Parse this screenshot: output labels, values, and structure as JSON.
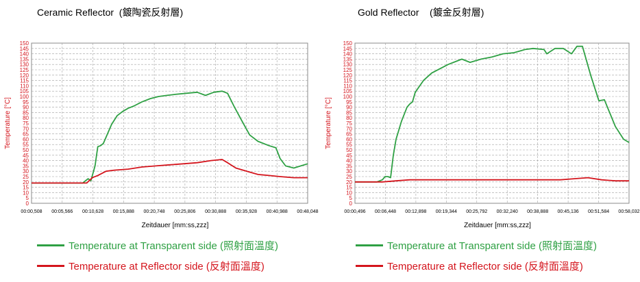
{
  "chart_data": [
    {
      "type": "line",
      "title": "Ceramic Reflector  (鍍陶瓷反射層)",
      "xlabel": "Zeitdauer [mm:ss,zzz]",
      "ylabel": "Temperature [°C]",
      "ylim": [
        0,
        150
      ],
      "yticks": [
        "0",
        "5",
        "10",
        "15",
        "20",
        "25",
        "30",
        "35",
        "40",
        "45",
        "50",
        "55",
        "60",
        "65",
        "70",
        "75",
        "80",
        "85",
        "90",
        "95",
        "100",
        "105",
        "110",
        "115",
        "120",
        "125",
        "130",
        "135",
        "140",
        "145",
        "150"
      ],
      "xlim": [
        0,
        10
      ],
      "xtick_labels": [
        "00:00,508",
        "00:05,566",
        "00:10,628",
        "00:15,888",
        "00:20,748",
        "00:25,806",
        "00:30,888",
        "00:35,928",
        "00:40,988",
        "00:48,048"
      ],
      "grid": true,
      "series": [
        {
          "name": "Temperature at Transparent side  (照射面溫度)",
          "color": "#2ea043",
          "x": [
            0,
            0.5,
            1,
            1.5,
            1.85,
            2.05,
            2.15,
            2.3,
            2.4,
            2.5,
            2.6,
            2.9,
            3.1,
            3.3,
            3.5,
            3.7,
            4.0,
            4.3,
            4.6,
            4.9,
            5.2,
            5.6,
            6.0,
            6.3,
            6.6,
            6.9,
            7.1,
            7.35,
            7.6,
            7.9,
            8.2,
            8.6,
            8.85,
            9.0,
            9.2,
            9.5,
            9.75,
            10.0
          ],
          "y": [
            19,
            19,
            19,
            19,
            19,
            23,
            21,
            35,
            53,
            54,
            56,
            74,
            82,
            86,
            89,
            91,
            95,
            98,
            100,
            101,
            102,
            103,
            104,
            101,
            104,
            105,
            103,
            90,
            78,
            64,
            58,
            54,
            52,
            42,
            35,
            33,
            35,
            37
          ]
        },
        {
          "name": "Temperature at Reflector side  (反射面溫度)",
          "color": "#d4141c",
          "x": [
            0,
            1,
            2.0,
            2.2,
            2.4,
            2.7,
            3.0,
            3.5,
            4.0,
            4.5,
            5.0,
            5.5,
            6.0,
            6.5,
            6.9,
            7.1,
            7.4,
            7.8,
            8.2,
            8.6,
            9.0,
            9.5,
            10.0
          ],
          "y": [
            19,
            19,
            19,
            24,
            26,
            30,
            31,
            32,
            34,
            35,
            36,
            37,
            38,
            40,
            41,
            38,
            33,
            30,
            27,
            26,
            25,
            24,
            24
          ]
        }
      ]
    },
    {
      "type": "line",
      "title": "Gold Reflector    (鍍金反射層)",
      "xlabel": "Zeitdauer [mm:ss,zzz]",
      "ylabel": "Temperature [°C]",
      "ylim": [
        0,
        150
      ],
      "yticks": [
        "0",
        "5",
        "10",
        "15",
        "20",
        "25",
        "30",
        "35",
        "40",
        "45",
        "50",
        "55",
        "60",
        "65",
        "70",
        "75",
        "80",
        "85",
        "90",
        "95",
        "100",
        "105",
        "110",
        "115",
        "120",
        "125",
        "130",
        "135",
        "140",
        "145",
        "150"
      ],
      "xlim": [
        0,
        10
      ],
      "xtick_labels": [
        "00:00,496",
        "00:06,448",
        "00:12,898",
        "00:19,344",
        "00:25,792",
        "00:32,240",
        "00:38,888",
        "00:45,136",
        "00:51,584",
        "00:58,032"
      ],
      "grid": true,
      "series": [
        {
          "name": "Temperature at Transparent side  (照射面溫度)",
          "color": "#2ea043",
          "x": [
            0,
            0.5,
            0.8,
            1.0,
            1.1,
            1.2,
            1.3,
            1.4,
            1.5,
            1.7,
            1.9,
            2.0,
            2.1,
            2.2,
            2.5,
            2.8,
            3.1,
            3.4,
            3.7,
            3.9,
            4.2,
            4.6,
            5.0,
            5.4,
            5.8,
            6.2,
            6.5,
            6.9,
            7.0,
            7.3,
            7.6,
            7.9,
            8.1,
            8.3,
            8.6,
            8.9,
            9.1,
            9.5,
            9.8,
            10.0
          ],
          "y": [
            20,
            20,
            20,
            22,
            25,
            25,
            24,
            45,
            60,
            77,
            90,
            93,
            95,
            104,
            115,
            122,
            126,
            130,
            133,
            135,
            132,
            135,
            137,
            140,
            141,
            144,
            145,
            144,
            140,
            145,
            145,
            140,
            147,
            147,
            120,
            96,
            97,
            72,
            60,
            57
          ]
        },
        {
          "name": "Temperature at Reflector side  (反射面溫度)",
          "color": "#d4141c",
          "x": [
            0,
            1,
            1.5,
            2.0,
            2.5,
            3.0,
            3.5,
            4.0,
            4.5,
            5.0,
            5.5,
            6.0,
            6.5,
            7.0,
            7.5,
            8.0,
            8.5,
            9.0,
            9.5,
            10.0
          ],
          "y": [
            20,
            20,
            21,
            22,
            22,
            22,
            22,
            22,
            22,
            22,
            22,
            22,
            22,
            22,
            22,
            23,
            24,
            22,
            21,
            21
          ]
        }
      ]
    }
  ]
}
